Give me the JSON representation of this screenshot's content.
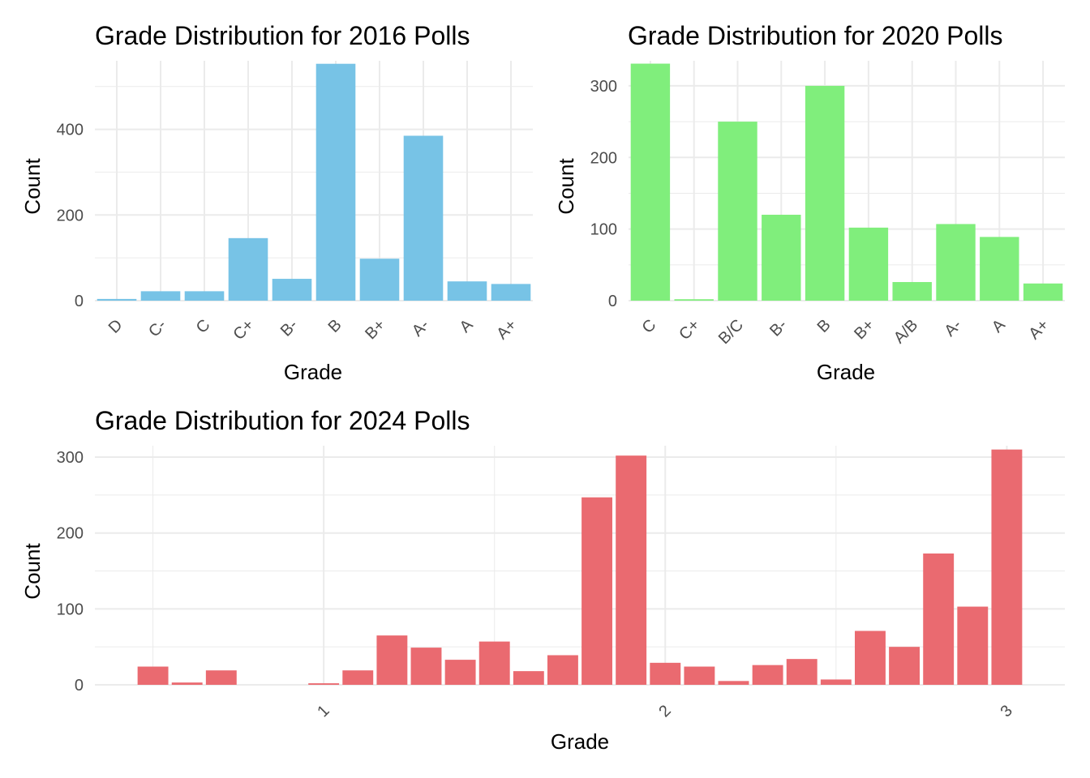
{
  "chart_data": [
    {
      "type": "bar",
      "title": "Grade Distribution for 2016 Polls",
      "xlabel": "Grade",
      "ylabel": "Count",
      "color": "#77c3e6",
      "categories": [
        "D",
        "C-",
        "C",
        "C+",
        "B-",
        "B",
        "B+",
        "A-",
        "A",
        "A+"
      ],
      "values": [
        4,
        22,
        22,
        146,
        51,
        553,
        98,
        385,
        45,
        39
      ],
      "ylim": [
        0,
        560
      ],
      "yticks": [
        0,
        200,
        400
      ],
      "ytick_labels": [
        "0",
        "200",
        "400"
      ],
      "grid": true,
      "legend": "none"
    },
    {
      "type": "bar",
      "title": "Grade Distribution for 2020 Polls",
      "xlabel": "Grade",
      "ylabel": "Count",
      "color": "#80ee7c",
      "categories": [
        "C",
        "C+",
        "B/C",
        "B-",
        "B",
        "B+",
        "A/B",
        "A-",
        "A",
        "A+"
      ],
      "values": [
        331,
        2,
        250,
        120,
        300,
        102,
        26,
        107,
        89,
        24
      ],
      "ylim": [
        0,
        335
      ],
      "yticks": [
        0,
        100,
        200,
        300
      ],
      "ytick_labels": [
        "0",
        "100",
        "200",
        "300"
      ],
      "grid": true,
      "legend": "none"
    },
    {
      "type": "bar",
      "title": "Grade Distribution for 2024 Polls",
      "xlabel": "Grade",
      "ylabel": "Count",
      "color": "#ea6a70",
      "x": [
        0.5,
        0.6,
        0.7,
        1.0,
        1.1,
        1.2,
        1.3,
        1.4,
        1.5,
        1.6,
        1.7,
        1.8,
        1.9,
        2.0,
        2.1,
        2.2,
        2.3,
        2.4,
        2.5,
        2.6,
        2.7,
        2.8,
        2.9,
        3.0
      ],
      "values": [
        24,
        3,
        19,
        2,
        19,
        65,
        49,
        33,
        57,
        18,
        39,
        247,
        302,
        29,
        24,
        5,
        26,
        34,
        7,
        71,
        50,
        173,
        103,
        310
      ],
      "xlim": [
        0.33,
        3.17
      ],
      "xticks": [
        1,
        2,
        3
      ],
      "xtick_labels": [
        "1",
        "2",
        "3"
      ],
      "ylim": [
        0,
        315
      ],
      "yticks": [
        0,
        100,
        200,
        300
      ],
      "ytick_labels": [
        "0",
        "100",
        "200",
        "300"
      ],
      "grid": true,
      "legend": "none"
    }
  ]
}
